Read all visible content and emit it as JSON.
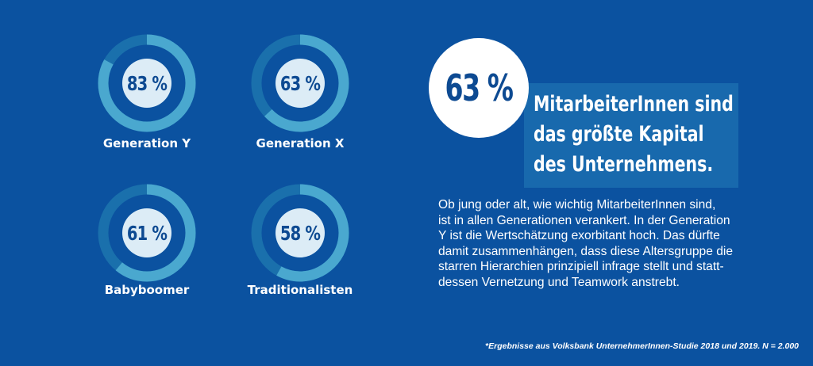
{
  "colors": {
    "background": "#0b52a0",
    "ring_track": "#1a70ac",
    "ring_fill": "#4aa8cf",
    "inner_circle": "#dcecf6",
    "value_text": "#0d4a92",
    "headline_box": "#1869ad"
  },
  "chart_data": {
    "type": "donut",
    "title": "",
    "unit": "%",
    "categories": [
      "Generation Y",
      "Generation X",
      "Babyboomer",
      "Traditionalisten"
    ],
    "values": [
      83,
      63,
      61,
      58
    ],
    "value_labels": [
      "83 %",
      "63 %",
      "61 %",
      "58 %"
    ],
    "range": [
      0,
      100
    ]
  },
  "highlight": {
    "value": "63 %",
    "headline_lines": [
      "MitarbeiterInnen sind",
      "das größte Kapital",
      "des Unternehmens."
    ]
  },
  "body": {
    "lines": [
      "Ob jung oder alt, wie wichtig MitarbeiterInnen sind,",
      "ist in allen Generationen verankert. In der Generation",
      "Y ist die Wertschätzung exorbitant hoch. Das dürfte",
      "damit zusammenhängen, dass diese Altersgruppe die",
      "starren Hierarchien prinzipiell infrage stellt und statt-",
      "dessen Vernetzung und Teamwork anstrebt."
    ]
  },
  "footnote": "*Ergebnisse aus Volksbank UnternehmerInnen-Studie 2018 und 2019. N = 2.000"
}
